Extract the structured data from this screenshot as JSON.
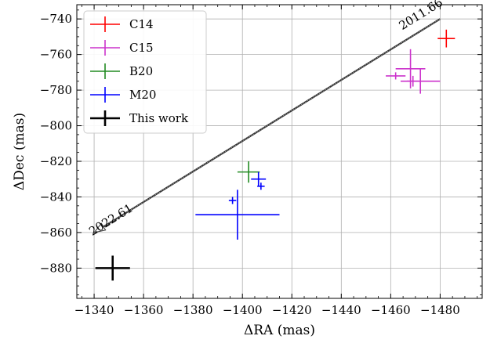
{
  "chart_data": {
    "type": "scatter",
    "xlabel": "ΔRA (mas)",
    "ylabel": "ΔDec (mas)",
    "xlim": [
      -1333,
      -1497
    ],
    "ylim": [
      -897,
      -732
    ],
    "x_ticks": [
      -1340,
      -1360,
      -1380,
      -1400,
      -1420,
      -1440,
      -1460,
      -1480
    ],
    "y_ticks": [
      -740,
      -760,
      -780,
      -800,
      -820,
      -840,
      -860,
      -880
    ],
    "x_tick_labels": [
      "−1340",
      "−1360",
      "−1380",
      "−1400",
      "−1420",
      "−1440",
      "−1460",
      "−1480"
    ],
    "y_tick_labels": [
      "−740",
      "−760",
      "−780",
      "−800",
      "−820",
      "−840",
      "−860",
      "−880"
    ],
    "grid": true,
    "legend_position": "top-left",
    "colors": {
      "C14": "#ff0000",
      "C15": "#cc33cc",
      "B20": "#228b22",
      "M20": "#0000ff",
      "This work": "#000000"
    },
    "series": [
      {
        "name": "C14",
        "points": [
          {
            "x": -1482.5,
            "y": -751,
            "xerr": 3.5,
            "yerr": 5
          }
        ]
      },
      {
        "name": "C15",
        "points": [
          {
            "x": -1468,
            "y": -768,
            "xerr": 6,
            "yerr": 11
          },
          {
            "x": -1462,
            "y": -772,
            "xerr": 4,
            "yerr": 2
          },
          {
            "x": -1469,
            "y": -775,
            "xerr": 2.5,
            "yerr": 3
          },
          {
            "x": -1472,
            "y": -775,
            "xerr": 8,
            "yerr": 7
          }
        ]
      },
      {
        "name": "B20",
        "points": [
          {
            "x": -1402.5,
            "y": -826,
            "xerr": 4.5,
            "yerr": 6
          }
        ]
      },
      {
        "name": "M20",
        "points": [
          {
            "x": -1396,
            "y": -842,
            "xerr": 1.5,
            "yerr": 2
          },
          {
            "x": -1407.5,
            "y": -834,
            "xerr": 1.5,
            "yerr": 2
          },
          {
            "x": -1406.5,
            "y": -830,
            "xerr": 3,
            "yerr": 4
          },
          {
            "x": -1398,
            "y": -850,
            "xerr": 17,
            "yerr": 14
          }
        ]
      },
      {
        "name": "This work",
        "points": [
          {
            "x": -1347.5,
            "y": -880,
            "xerr": 7,
            "yerr": 7
          }
        ]
      }
    ],
    "arrow": {
      "from": {
        "x": -1480,
        "y": -740
      },
      "to": {
        "x": -1340,
        "y": -860
      },
      "label_start": "2011.66",
      "label_end": "2022.61"
    }
  }
}
